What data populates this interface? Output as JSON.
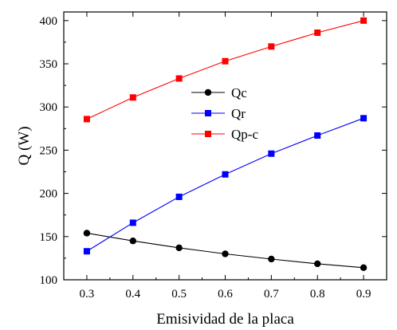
{
  "chart_data": {
    "type": "line",
    "xlabel": "Emisividad de la placa",
    "ylabel": "Q (W)",
    "xlim": [
      0.25,
      0.95
    ],
    "ylim": [
      100,
      410
    ],
    "xticks": [
      0.3,
      0.4,
      0.5,
      0.6,
      0.7,
      0.8,
      0.9
    ],
    "xtick_labels": [
      "0.3",
      "0.4",
      "0.5",
      "0.6",
      "0.7",
      "0.8",
      "0.9"
    ],
    "yticks": [
      100,
      150,
      200,
      250,
      300,
      350,
      400
    ],
    "ytick_labels": [
      "100",
      "150",
      "200",
      "250",
      "300",
      "350",
      "400"
    ],
    "legend_position": "center-right",
    "grid": false,
    "x": [
      0.3,
      0.4,
      0.5,
      0.6,
      0.7,
      0.8,
      0.9
    ],
    "series": [
      {
        "name": "Qc",
        "color": "#000000",
        "marker": "circle",
        "values": [
          154,
          145,
          137,
          130,
          124,
          118.5,
          114
        ]
      },
      {
        "name": "Qr",
        "color": "#0000ff",
        "marker": "square",
        "values": [
          133,
          166,
          196,
          222,
          246,
          267,
          287
        ]
      },
      {
        "name": "Qp-c",
        "color": "#ff0000",
        "marker": "square",
        "values": [
          286,
          311,
          333,
          353,
          370,
          386,
          400
        ]
      }
    ]
  }
}
